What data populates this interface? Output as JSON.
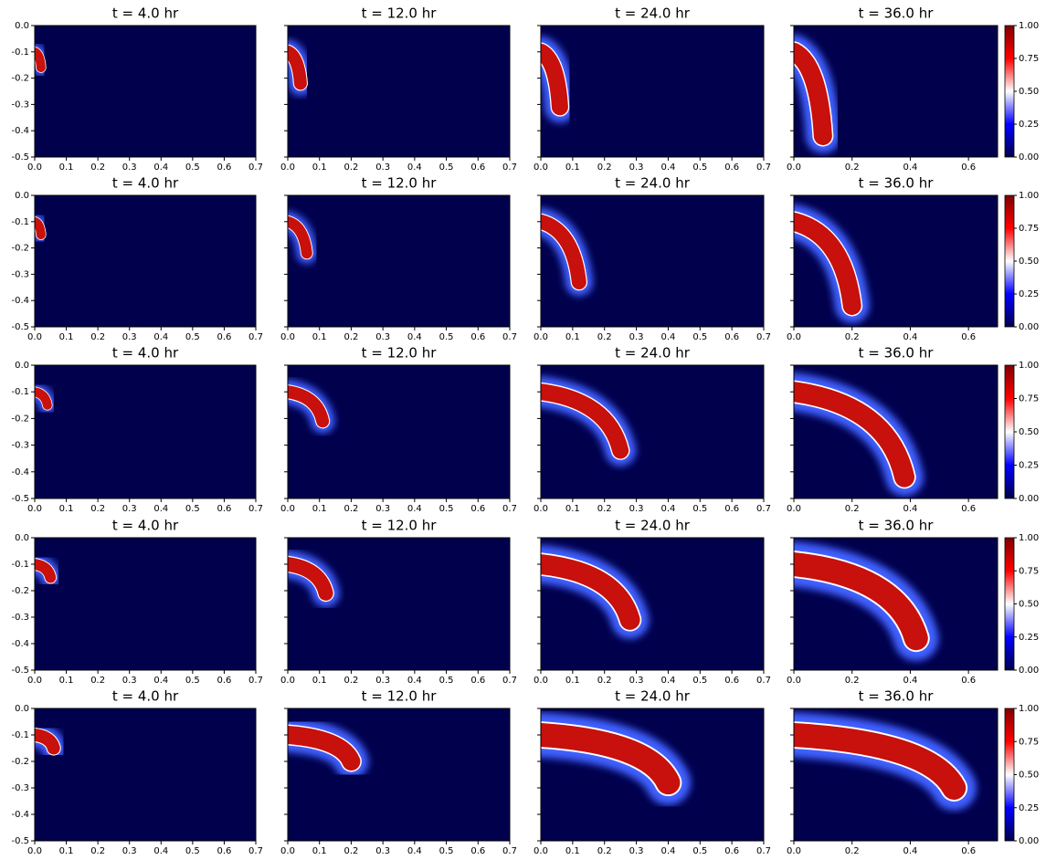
{
  "chart_data": [
    {
      "type": "heatmap",
      "title": "t = 4.0 hr",
      "colormap": "seismic",
      "xlim": [
        0,
        0.7
      ],
      "ylim": [
        -0.5,
        0
      ],
      "xticks": [
        {
          "value": 0,
          "label": "0.0"
        },
        0.1,
        0.2,
        0.3,
        0.4,
        0.5,
        0.6,
        0.7
      ],
      "yticks": [
        {
          "value": 0,
          "label": "0.0"
        },
        -0.1,
        -0.2,
        -0.3,
        -0.4,
        -0.5
      ],
      "ytick_labels": true
    },
    {
      "type": "heatmap",
      "title": "t = 12.0 hr",
      "colormap": "seismic",
      "xlim": [
        0,
        0.7
      ],
      "ylim": [
        -0.5,
        0
      ],
      "xticks": [
        {
          "value": 0,
          "label": "0.0"
        },
        0.1,
        0.2,
        0.3,
        0.4,
        0.5,
        0.6,
        0.7
      ],
      "yticks": [
        0,
        -0.1,
        -0.2,
        -0.3,
        -0.4,
        -0.5
      ],
      "ytick_labels": false
    },
    {
      "type": "heatmap",
      "title": "t = 24.0 hr",
      "colormap": "seismic",
      "xlim": [
        0,
        0.7
      ],
      "ylim": [
        -0.5,
        0
      ],
      "xticks": [
        {
          "value": 0,
          "label": "0.0"
        },
        0.1,
        0.2,
        0.3,
        0.4,
        0.5,
        0.6,
        0.7
      ],
      "yticks": [
        0,
        -0.1,
        -0.2,
        -0.3,
        -0.4,
        -0.5
      ],
      "ytick_labels": false
    },
    {
      "type": "heatmap",
      "title": "t = 36.0 hr",
      "colormap": "seismic",
      "xlim": [
        0,
        0.7
      ],
      "ylim": [
        -0.5,
        0
      ],
      "xticks": [
        {
          "value": 0,
          "label": "0.0"
        },
        0.2,
        0.4,
        0.6
      ],
      "yticks": [
        0,
        -0.1,
        -0.2,
        -0.3,
        -0.4,
        -0.5
      ],
      "ytick_labels": false,
      "colorbar": {
        "lim": [
          0,
          1
        ],
        "ticks": [
          {
            "value": 0,
            "label": "0.00"
          },
          {
            "value": 0.25,
            "label": "0.25"
          },
          {
            "value": 0.5,
            "label": "0.50"
          },
          {
            "value": 0.75,
            "label": "0.75"
          },
          {
            "value": 1,
            "label": "1.00"
          }
        ]
      }
    },
    {
      "type": "heatmap",
      "title": "t = 4.0 hr",
      "colormap": "seismic",
      "xlim": [
        0,
        0.7
      ],
      "ylim": [
        -0.5,
        0
      ],
      "xticks": [
        {
          "value": 0,
          "label": "0.0"
        },
        0.1,
        0.2,
        0.3,
        0.4,
        0.5,
        0.6,
        0.7
      ],
      "yticks": [
        {
          "value": 0,
          "label": "0.0"
        },
        -0.1,
        -0.2,
        -0.3,
        -0.4,
        -0.5
      ],
      "ytick_labels": true
    },
    {
      "type": "heatmap",
      "title": "t = 12.0 hr",
      "colormap": "seismic",
      "xlim": [
        0,
        0.7
      ],
      "ylim": [
        -0.5,
        0
      ],
      "xticks": [
        {
          "value": 0,
          "label": "0.0"
        },
        0.1,
        0.2,
        0.3,
        0.4,
        0.5,
        0.6,
        0.7
      ],
      "yticks": [
        0,
        -0.1,
        -0.2,
        -0.3,
        -0.4,
        -0.5
      ],
      "ytick_labels": false
    },
    {
      "type": "heatmap",
      "title": "t = 24.0 hr",
      "colormap": "seismic",
      "xlim": [
        0,
        0.7
      ],
      "ylim": [
        -0.5,
        0
      ],
      "xticks": [
        {
          "value": 0,
          "label": "0.0"
        },
        0.1,
        0.2,
        0.3,
        0.4,
        0.5,
        0.6,
        0.7
      ],
      "yticks": [
        0,
        -0.1,
        -0.2,
        -0.3,
        -0.4,
        -0.5
      ],
      "ytick_labels": false
    },
    {
      "type": "heatmap",
      "title": "t = 36.0 hr",
      "colormap": "seismic",
      "xlim": [
        0,
        0.7
      ],
      "ylim": [
        -0.5,
        0
      ],
      "xticks": [
        {
          "value": 0,
          "label": "0.0"
        },
        0.2,
        0.4,
        0.6
      ],
      "yticks": [
        0,
        -0.1,
        -0.2,
        -0.3,
        -0.4,
        -0.5
      ],
      "ytick_labels": false,
      "colorbar": {
        "lim": [
          0,
          1
        ],
        "ticks": [
          {
            "value": 0,
            "label": "0.00"
          },
          {
            "value": 0.25,
            "label": "0.25"
          },
          {
            "value": 0.5,
            "label": "0.50"
          },
          {
            "value": 0.75,
            "label": "0.75"
          },
          {
            "value": 1,
            "label": "1.00"
          }
        ]
      }
    },
    {
      "type": "heatmap",
      "title": "t = 4.0 hr",
      "colormap": "seismic",
      "xlim": [
        0,
        0.7
      ],
      "ylim": [
        -0.5,
        0
      ],
      "xticks": [
        {
          "value": 0,
          "label": "0.0"
        },
        0.1,
        0.2,
        0.3,
        0.4,
        0.5,
        0.6,
        0.7
      ],
      "yticks": [
        {
          "value": 0,
          "label": "0.0"
        },
        -0.1,
        -0.2,
        -0.3,
        -0.4,
        -0.5
      ],
      "ytick_labels": true
    },
    {
      "type": "heatmap",
      "title": "t = 12.0 hr",
      "colormap": "seismic",
      "xlim": [
        0,
        0.7
      ],
      "ylim": [
        -0.5,
        0
      ],
      "xticks": [
        {
          "value": 0,
          "label": "0.0"
        },
        0.1,
        0.2,
        0.3,
        0.4,
        0.5,
        0.6,
        0.7
      ],
      "yticks": [
        0,
        -0.1,
        -0.2,
        -0.3,
        -0.4,
        -0.5
      ],
      "ytick_labels": false
    },
    {
      "type": "heatmap",
      "title": "t = 24.0 hr",
      "colormap": "seismic",
      "xlim": [
        0,
        0.7
      ],
      "ylim": [
        -0.5,
        0
      ],
      "xticks": [
        {
          "value": 0,
          "label": "0.0"
        },
        0.1,
        0.2,
        0.3,
        0.4,
        0.5,
        0.6,
        0.7
      ],
      "yticks": [
        0,
        -0.1,
        -0.2,
        -0.3,
        -0.4,
        -0.5
      ],
      "ytick_labels": false
    },
    {
      "type": "heatmap",
      "title": "t = 36.0 hr",
      "colormap": "seismic",
      "xlim": [
        0,
        0.7
      ],
      "ylim": [
        -0.5,
        0
      ],
      "xticks": [
        {
          "value": 0,
          "label": "0.0"
        },
        0.2,
        0.4,
        0.6
      ],
      "yticks": [
        0,
        -0.1,
        -0.2,
        -0.3,
        -0.4,
        -0.5
      ],
      "ytick_labels": false,
      "colorbar": {
        "lim": [
          0,
          1
        ],
        "ticks": [
          {
            "value": 0,
            "label": "0.00"
          },
          {
            "value": 0.25,
            "label": "0.25"
          },
          {
            "value": 0.5,
            "label": "0.50"
          },
          {
            "value": 0.75,
            "label": "0.75"
          },
          {
            "value": 1,
            "label": "1.00"
          }
        ]
      }
    },
    {
      "type": "heatmap",
      "title": "t = 4.0 hr",
      "colormap": "seismic",
      "xlim": [
        0,
        0.7
      ],
      "ylim": [
        -0.5,
        0
      ],
      "xticks": [
        {
          "value": 0,
          "label": "0.0"
        },
        0.1,
        0.2,
        0.3,
        0.4,
        0.5,
        0.6,
        0.7
      ],
      "yticks": [
        {
          "value": 0,
          "label": "0.0"
        },
        -0.1,
        -0.2,
        -0.3,
        -0.4,
        -0.5
      ],
      "ytick_labels": true
    },
    {
      "type": "heatmap",
      "title": "t = 12.0 hr",
      "colormap": "seismic",
      "xlim": [
        0,
        0.7
      ],
      "ylim": [
        -0.5,
        0
      ],
      "xticks": [
        {
          "value": 0,
          "label": "0.0"
        },
        0.1,
        0.2,
        0.3,
        0.4,
        0.5,
        0.6,
        0.7
      ],
      "yticks": [
        0,
        -0.1,
        -0.2,
        -0.3,
        -0.4,
        -0.5
      ],
      "ytick_labels": false
    },
    {
      "type": "heatmap",
      "title": "t = 24.0 hr",
      "colormap": "seismic",
      "xlim": [
        0,
        0.7
      ],
      "ylim": [
        -0.5,
        0
      ],
      "xticks": [
        {
          "value": 0,
          "label": "0.0"
        },
        0.1,
        0.2,
        0.3,
        0.4,
        0.5,
        0.6,
        0.7
      ],
      "yticks": [
        0,
        -0.1,
        -0.2,
        -0.3,
        -0.4,
        -0.5
      ],
      "ytick_labels": false
    },
    {
      "type": "heatmap",
      "title": "t = 36.0 hr",
      "colormap": "seismic",
      "xlim": [
        0,
        0.7
      ],
      "ylim": [
        -0.5,
        0
      ],
      "xticks": [
        {
          "value": 0,
          "label": "0.0"
        },
        0.2,
        0.4,
        0.6
      ],
      "yticks": [
        0,
        -0.1,
        -0.2,
        -0.3,
        -0.4,
        -0.5
      ],
      "ytick_labels": false,
      "colorbar": {
        "lim": [
          0,
          1
        ],
        "ticks": [
          {
            "value": 0,
            "label": "0.00"
          },
          {
            "value": 0.25,
            "label": "0.25"
          },
          {
            "value": 0.5,
            "label": "0.50"
          },
          {
            "value": 0.75,
            "label": "0.75"
          },
          {
            "value": 1,
            "label": "1.00"
          }
        ]
      }
    },
    {
      "type": "heatmap",
      "title": "t = 4.0 hr",
      "colormap": "seismic",
      "xlim": [
        0,
        0.7
      ],
      "ylim": [
        -0.5,
        0
      ],
      "xticks": [
        {
          "value": 0,
          "label": "0.0"
        },
        0.1,
        0.2,
        0.3,
        0.4,
        0.5,
        0.6,
        0.7
      ],
      "yticks": [
        {
          "value": 0,
          "label": "0.0"
        },
        -0.1,
        -0.2,
        -0.3,
        -0.4,
        -0.5
      ],
      "ytick_labels": true
    },
    {
      "type": "heatmap",
      "title": "t = 12.0 hr",
      "colormap": "seismic",
      "xlim": [
        0,
        0.7
      ],
      "ylim": [
        -0.5,
        0
      ],
      "xticks": [
        {
          "value": 0,
          "label": "0.0"
        },
        0.1,
        0.2,
        0.3,
        0.4,
        0.5,
        0.6,
        0.7
      ],
      "yticks": [
        0,
        -0.1,
        -0.2,
        -0.3,
        -0.4,
        -0.5
      ],
      "ytick_labels": false
    },
    {
      "type": "heatmap",
      "title": "t = 24.0 hr",
      "colormap": "seismic",
      "xlim": [
        0,
        0.7
      ],
      "ylim": [
        -0.5,
        0
      ],
      "xticks": [
        {
          "value": 0,
          "label": "0.0"
        },
        0.1,
        0.2,
        0.3,
        0.4,
        0.5,
        0.6,
        0.7
      ],
      "yticks": [
        0,
        -0.1,
        -0.2,
        -0.3,
        -0.4,
        -0.5
      ],
      "ytick_labels": false
    },
    {
      "type": "heatmap",
      "title": "t = 36.0 hr",
      "colormap": "seismic",
      "xlim": [
        0,
        0.7
      ],
      "ylim": [
        -0.5,
        0
      ],
      "xticks": [
        {
          "value": 0,
          "label": "0.0"
        },
        0.2,
        0.4,
        0.6
      ],
      "yticks": [
        0,
        -0.1,
        -0.2,
        -0.3,
        -0.4,
        -0.5
      ],
      "ytick_labels": false,
      "colorbar": {
        "lim": [
          0,
          1
        ],
        "ticks": [
          {
            "value": 0,
            "label": "0.00"
          },
          {
            "value": 0.25,
            "label": "0.25"
          },
          {
            "value": 0.5,
            "label": "0.50"
          },
          {
            "value": 0.75,
            "label": "0.75"
          },
          {
            "value": 1,
            "label": "1.00"
          }
        ]
      }
    }
  ]
}
